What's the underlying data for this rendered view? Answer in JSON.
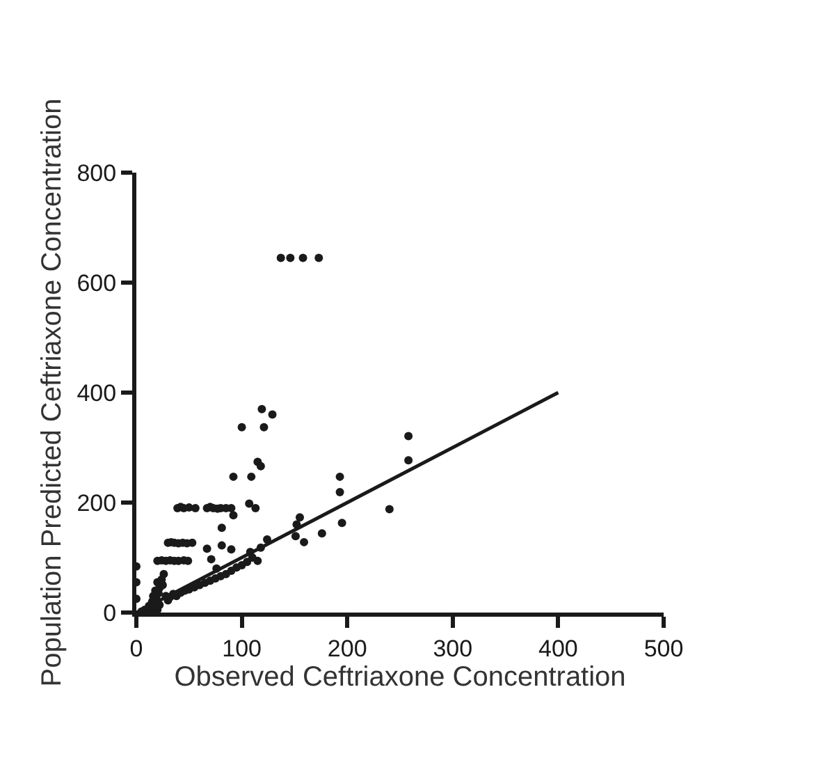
{
  "chart_data": {
    "type": "scatter",
    "xlabel": "Observed Ceftriaxone Concentration",
    "ylabel": "Population Predicted Ceftriaxone Concentration",
    "xlim": [
      0,
      500
    ],
    "ylim": [
      0,
      800
    ],
    "xticks": [
      0,
      100,
      200,
      300,
      400,
      500
    ],
    "yticks": [
      0,
      200,
      400,
      600,
      800
    ],
    "series": [
      {
        "color": "#1a1a1a",
        "marker": "circle",
        "x": [
          137,
          146,
          158,
          173,
          100,
          119,
          129,
          121,
          115,
          118,
          92,
          109,
          193,
          193,
          240,
          195,
          258,
          258,
          176,
          159,
          155,
          152,
          151,
          115,
          124,
          118,
          108,
          39,
          42,
          45,
          50,
          56,
          67,
          70,
          73,
          77,
          80,
          85,
          90,
          81,
          92,
          107,
          113,
          30,
          33,
          36,
          40,
          44,
          48,
          53,
          67,
          81,
          90,
          71,
          76,
          20,
          24,
          28,
          32,
          36,
          40,
          45,
          49,
          0,
          0,
          0,
          5,
          8,
          12,
          14,
          15,
          16,
          18,
          19,
          20,
          21,
          22,
          24,
          25,
          26,
          28,
          30,
          32,
          35,
          38,
          42,
          46,
          50,
          55,
          60,
          65,
          70,
          75,
          80,
          85,
          90,
          95,
          100,
          105,
          110,
          18,
          20,
          22
        ],
        "values": [
          645,
          645,
          645,
          645,
          337,
          370,
          360,
          337,
          274,
          266,
          247,
          247,
          247,
          219,
          188,
          163,
          321,
          277,
          144,
          128,
          173,
          160,
          139,
          94,
          133,
          118,
          110,
          190,
          192,
          190,
          191,
          190,
          190,
          192,
          190,
          189,
          190,
          190,
          190,
          154,
          177,
          198,
          190,
          127,
          128,
          127,
          126,
          127,
          126,
          127,
          116,
          122,
          115,
          97,
          80,
          94,
          95,
          94,
          95,
          94,
          94,
          95,
          94,
          84,
          55,
          25,
          2,
          5,
          12,
          3,
          20,
          30,
          40,
          25,
          55,
          35,
          45,
          60,
          50,
          70,
          30,
          22,
          28,
          34,
          30,
          36,
          40,
          42,
          46,
          50,
          54,
          58,
          62,
          66,
          70,
          76,
          82,
          86,
          92,
          100,
          10,
          5,
          14
        ]
      },
      {
        "type": "line",
        "color": "#1a1a1a",
        "line_style": "solid",
        "x": [
          0,
          400
        ],
        "values": [
          0,
          400
        ]
      }
    ]
  }
}
